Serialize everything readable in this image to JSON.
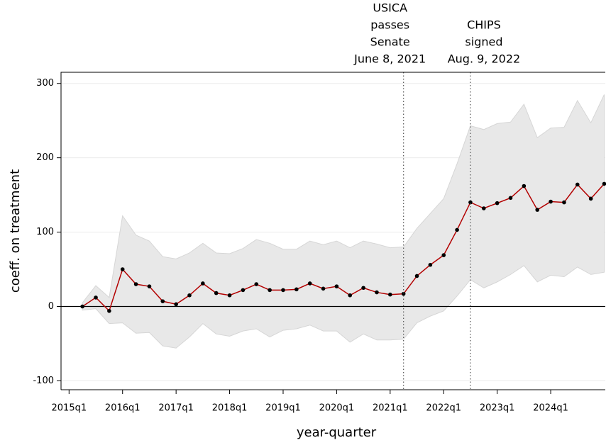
{
  "chart_data": {
    "type": "line",
    "x_label": "year-quarter",
    "y_label": "coeff. on treatment",
    "x": [
      2015.25,
      2015.5,
      2015.75,
      2016,
      2016.25,
      2016.5,
      2016.75,
      2017,
      2017.25,
      2017.5,
      2017.75,
      2018,
      2018.25,
      2018.5,
      2018.75,
      2019,
      2019.25,
      2019.5,
      2019.75,
      2020,
      2020.25,
      2020.5,
      2020.75,
      2021,
      2021.25,
      2021.5,
      2021.75,
      2022,
      2022.25,
      2022.5,
      2022.75,
      2023,
      2023.25,
      2023.5,
      2023.75,
      2024,
      2024.25,
      2024.5,
      2024.75,
      2025
    ],
    "series": [
      {
        "color": "#b30000",
        "marker_color": "#000000",
        "values": [
          0,
          12,
          -6,
          50,
          30,
          27,
          7,
          3,
          15,
          31,
          18,
          15,
          22,
          30,
          22,
          22,
          23,
          31,
          24,
          27,
          15,
          25,
          19,
          16,
          17,
          41,
          56,
          69,
          103,
          140,
          132,
          139,
          146,
          162,
          130,
          141,
          140,
          164,
          145,
          165
        ]
      }
    ],
    "band": {
      "color": "#e8e8e8",
      "upper": [
        5,
        28,
        12,
        122,
        96,
        88,
        67,
        64,
        72,
        85,
        72,
        71,
        78,
        90,
        85,
        77,
        77,
        88,
        83,
        88,
        79,
        88,
        84,
        79,
        80,
        105,
        125,
        145,
        192,
        243,
        238,
        246,
        248,
        272,
        227,
        240,
        241,
        277,
        247,
        285
      ],
      "lower": [
        -5,
        -3,
        -23,
        -22,
        -36,
        -35,
        -53,
        -56,
        -41,
        -23,
        -37,
        -40,
        -33,
        -30,
        -41,
        -32,
        -30,
        -25,
        -33,
        -33,
        -48,
        -37,
        -45,
        -45,
        -44,
        -22,
        -13,
        -6,
        14,
        36,
        25,
        33,
        43,
        55,
        33,
        42,
        40,
        53,
        43,
        46
      ]
    },
    "xlim": [
      2014.85,
      2025.02
    ],
    "xticks": [
      {
        "value": 2015,
        "label": "2015q1"
      },
      {
        "value": 2016,
        "label": "2016q1"
      },
      {
        "value": 2017,
        "label": "2017q1"
      },
      {
        "value": 2018,
        "label": "2018q1"
      },
      {
        "value": 2019,
        "label": "2019q1"
      },
      {
        "value": 2020,
        "label": "2020q1"
      },
      {
        "value": 2021,
        "label": "2021q1"
      },
      {
        "value": 2022,
        "label": "2022q1"
      },
      {
        "value": 2023,
        "label": "2023q1"
      },
      {
        "value": 2024,
        "label": "2024q1"
      }
    ],
    "ylim": [
      -112,
      315
    ],
    "yticks": [
      -100,
      0,
      100,
      200,
      300
    ],
    "grid": true,
    "hline": 0,
    "annotations": [
      {
        "x": 2021.25,
        "lines": [
          "USICA",
          "passes",
          "Senate",
          "June 8, 2021"
        ]
      },
      {
        "x": 2022.5,
        "lines": [
          "CHIPS",
          "signed",
          "Aug. 9, 2022"
        ]
      }
    ]
  }
}
